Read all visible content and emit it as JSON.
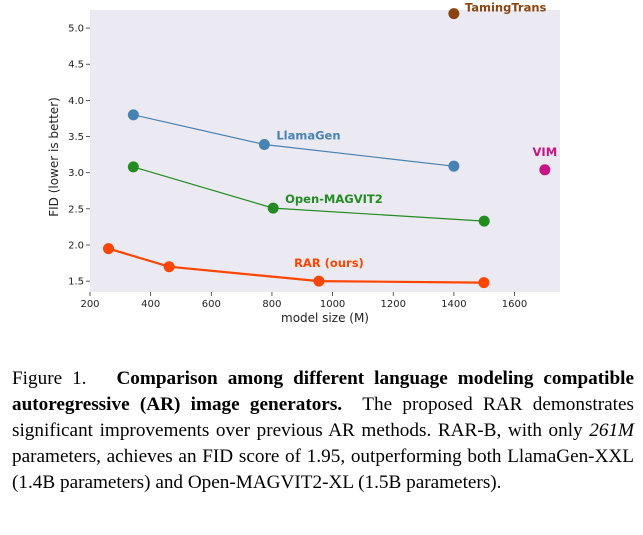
{
  "chart_data": {
    "type": "line",
    "xlabel": "model size (M)",
    "ylabel": "FID (lower is better)",
    "xlim": [
      200,
      1750
    ],
    "ylim": [
      1.35,
      5.25
    ],
    "xticks": [
      200,
      400,
      600,
      800,
      1000,
      1200,
      1400,
      1600
    ],
    "yticks": [
      1.5,
      2.0,
      2.5,
      3.0,
      3.5,
      4.0,
      4.5,
      5.0
    ],
    "grid": false,
    "background": "#ebeaf2",
    "series": [
      {
        "name": "TamingTrans",
        "color": "#8b4513",
        "x": [
          1400
        ],
        "y": [
          5.2
        ],
        "label_pos": "right"
      },
      {
        "name": "LlamaGen",
        "color": "#4682b4",
        "x": [
          343,
          775,
          1400
        ],
        "y": [
          3.8,
          3.39,
          3.09
        ],
        "label_pos": "right"
      },
      {
        "name": "VIM",
        "color": "#c71585",
        "x": [
          1700
        ],
        "y": [
          3.04
        ],
        "label_pos": "above"
      },
      {
        "name": "Open-MAGVIT2",
        "color": "#228b22",
        "x": [
          343,
          804,
          1500
        ],
        "y": [
          3.08,
          2.51,
          2.33
        ],
        "label_pos": "right"
      },
      {
        "name": "RAR (ours)",
        "color": "#ff4500",
        "x": [
          261,
          461,
          955,
          1499
        ],
        "y": [
          1.95,
          1.7,
          1.5,
          1.48
        ],
        "label_pos": "above"
      }
    ]
  },
  "caption": {
    "prefix": "Figure 1.",
    "title": "Comparison among different language modeling compatible autoregressive (AR) image generators.",
    "text1": "The proposed RAR demonstrates significant improvements over previous AR methods. RAR-B, with only",
    "emph": "261M",
    "text2": "parameters, achieves an FID score of 1.95, outperforming both LlamaGen-XXL (1.4B parameters) and Open-MAGVIT2-XL (1.5B parameters)."
  }
}
